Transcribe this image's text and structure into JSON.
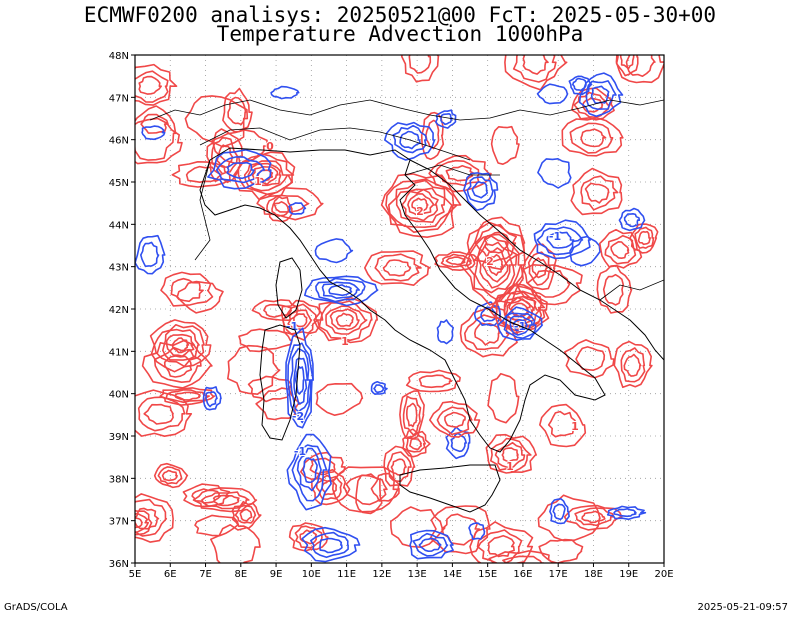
{
  "header": {
    "line1": "ECMWF0200 analisys: 20250521@00 FcT: 2025-05-30+00",
    "line2": "Temperature Advection 1000hPa"
  },
  "footer": {
    "left": "GrADS/COLA",
    "right": "2025-05-21-09:57"
  },
  "map": {
    "lon_range": [
      5,
      20
    ],
    "lat_range": [
      36,
      48
    ],
    "x_ticks": [
      "5E",
      "6E",
      "7E",
      "8E",
      "9E",
      "10E",
      "11E",
      "12E",
      "13E",
      "14E",
      "15E",
      "16E",
      "17E",
      "18E",
      "19E",
      "20E"
    ],
    "y_ticks": [
      "36N",
      "37N",
      "38N",
      "39N",
      "40N",
      "41N",
      "42N",
      "43N",
      "44N",
      "45N",
      "46N",
      "47N",
      "48N"
    ],
    "grid": "dotted",
    "colors": {
      "warm_advection": "#f04848",
      "cold_advection": "#3050f0",
      "coastline": "#000000"
    },
    "contour_labels": [
      "1",
      "-1",
      "2",
      "-2",
      "0"
    ]
  }
}
